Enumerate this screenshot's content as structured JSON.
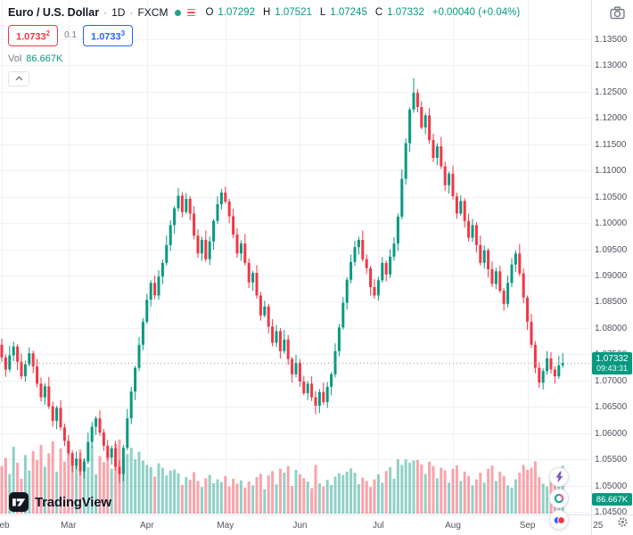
{
  "header": {
    "symbol": "Euro / U.S. Dollar",
    "separator": "·",
    "timeframe": "1D",
    "exchange": "FXCM",
    "ohlc": [
      {
        "label": "O",
        "value": "1.07292"
      },
      {
        "label": "H",
        "value": "1.07521"
      },
      {
        "label": "L",
        "value": "1.07245"
      },
      {
        "label": "C",
        "value": "1.07332"
      }
    ],
    "change": "+0.00040 (+0.04%)",
    "sell": {
      "price": "1.0733",
      "sup": "2"
    },
    "spread": "0.1",
    "buy": {
      "price": "1.0733",
      "sup": "3"
    },
    "volume_label": "Vol",
    "volume_value": "86.667K"
  },
  "footer": {
    "logo_text": "TradingView"
  },
  "icons": {
    "market_status": "dot",
    "quick_menu": "hamburger",
    "snapshot": "camera",
    "legend_collapse": "chevron-up",
    "axis_settings": "gear",
    "streams": "lightning",
    "sentiment": "donut",
    "community": "avatars"
  },
  "colors": {
    "up": "#089981",
    "down": "#f23645",
    "vol_up": "rgba(8,153,129,0.45)",
    "vol_down": "rgba(242,54,69,0.45)",
    "grid": "#eef1f6",
    "axis_text": "#50535e",
    "separator": "#e0e3eb",
    "price_line": "#9598a1",
    "badge_bg": "#089981",
    "sell": "#f23645",
    "buy": "#2962ff"
  },
  "chart_data": {
    "type": "candlestick",
    "title": "Euro / U.S. Dollar · 1D · FXCM",
    "symbol": "EUR/USD",
    "timeframe": "1D",
    "exchange": "FXCM",
    "legend_ohlc": {
      "open": 1.07292,
      "high": 1.07521,
      "low": 1.07245,
      "close": 1.07332,
      "change_abs": 0.0004,
      "change_pct": 0.04
    },
    "last_price": 1.07332,
    "last_price_label": "1.07332",
    "countdown": "09:43:31",
    "last_volume_label": "86.667K",
    "volume_pane": true,
    "grid": true,
    "y_axis": {
      "min": 1.045,
      "max": 1.135,
      "step": 0.005,
      "tick_labels": [
        "1.13500",
        "1.13000",
        "1.12500",
        "1.12000",
        "1.11500",
        "1.11000",
        "1.10500",
        "1.10000",
        "1.09500",
        "1.09000",
        "1.08500",
        "1.08000",
        "1.07500",
        "1.07000",
        "1.06500",
        "1.06000",
        "1.05500",
        "1.05000",
        "1.04500"
      ]
    },
    "x_axis": {
      "ticks": [
        {
          "label": "Feb",
          "bar": 0
        },
        {
          "label": "Mar",
          "bar": 17
        },
        {
          "label": "Apr",
          "bar": 37
        },
        {
          "label": "May",
          "bar": 57
        },
        {
          "label": "Jun",
          "bar": 76
        },
        {
          "label": "Jul",
          "bar": 96
        },
        {
          "label": "Aug",
          "bar": 115
        },
        {
          "label": "Sep",
          "bar": 134
        },
        {
          "label": "25",
          "bar": 152
        }
      ]
    },
    "candles_format": [
      "open",
      "high",
      "low",
      "close",
      "volume_K"
    ],
    "candles": [
      [
        1.0768,
        1.078,
        1.0736,
        1.0744,
        86
      ],
      [
        1.0744,
        1.075,
        1.0707,
        1.0721,
        101
      ],
      [
        1.0721,
        1.0766,
        1.0716,
        1.0748,
        72
      ],
      [
        1.0748,
        1.0774,
        1.0737,
        1.0765,
        121
      ],
      [
        1.0765,
        1.0769,
        1.072,
        1.0736,
        92
      ],
      [
        1.0736,
        1.0751,
        1.0702,
        1.0708,
        63
      ],
      [
        1.0708,
        1.0738,
        1.0698,
        1.0731,
        106
      ],
      [
        1.0731,
        1.0763,
        1.0727,
        1.0752,
        78
      ],
      [
        1.0752,
        1.0757,
        1.0714,
        1.0727,
        113
      ],
      [
        1.0727,
        1.0741,
        1.0687,
        1.0694,
        97
      ],
      [
        1.0694,
        1.0706,
        1.066,
        1.0668,
        124
      ],
      [
        1.0668,
        1.0695,
        1.0654,
        1.0689,
        85
      ],
      [
        1.0689,
        1.0707,
        1.0646,
        1.0651,
        109
      ],
      [
        1.0651,
        1.066,
        1.0612,
        1.0623,
        131
      ],
      [
        1.0623,
        1.0652,
        1.0607,
        1.0648,
        76
      ],
      [
        1.0648,
        1.0663,
        1.0605,
        1.0611,
        118
      ],
      [
        1.0611,
        1.0618,
        1.0575,
        1.0585,
        94
      ],
      [
        1.0585,
        1.0596,
        1.0558,
        1.0562,
        127
      ],
      [
        1.0562,
        1.0567,
        1.0525,
        1.0538,
        103
      ],
      [
        1.0538,
        1.0565,
        1.0531,
        1.0551,
        89
      ],
      [
        1.0551,
        1.0563,
        1.0519,
        1.0527,
        116
      ],
      [
        1.0527,
        1.0552,
        1.0513,
        1.0546,
        98
      ],
      [
        1.0546,
        1.0601,
        1.0541,
        1.0583,
        84
      ],
      [
        1.0583,
        1.0621,
        1.0572,
        1.0612,
        122
      ],
      [
        1.0612,
        1.0632,
        1.0596,
        1.0628,
        71
      ],
      [
        1.0628,
        1.0643,
        1.0595,
        1.0601,
        104
      ],
      [
        1.0601,
        1.0608,
        1.0566,
        1.0576,
        93
      ],
      [
        1.0576,
        1.0587,
        1.0549,
        1.0553,
        112
      ],
      [
        1.0553,
        1.0576,
        1.054,
        1.0571,
        81
      ],
      [
        1.0571,
        1.0585,
        1.0529,
        1.0536,
        126
      ],
      [
        1.0536,
        1.0548,
        1.0505,
        1.0522,
        134
      ],
      [
        1.0522,
        1.0578,
        1.0508,
        1.0572,
        95
      ],
      [
        1.0572,
        1.0646,
        1.0567,
        1.0628,
        108
      ],
      [
        1.0628,
        1.0688,
        1.0617,
        1.0679,
        119
      ],
      [
        1.0679,
        1.0728,
        1.0663,
        1.0724,
        98
      ],
      [
        1.0724,
        1.0783,
        1.0718,
        1.0768,
        112
      ],
      [
        1.0768,
        1.0819,
        1.0758,
        1.0812,
        96
      ],
      [
        1.0812,
        1.0865,
        1.0808,
        1.0854,
        88
      ],
      [
        1.0854,
        1.0891,
        1.0841,
        1.0886,
        84
      ],
      [
        1.0886,
        1.09,
        1.0855,
        1.0862,
        67
      ],
      [
        1.0862,
        1.091,
        1.0854,
        1.0898,
        91
      ],
      [
        1.0898,
        1.093,
        1.0884,
        1.0924,
        83
      ],
      [
        1.0924,
        1.0976,
        1.0919,
        1.0958,
        69
      ],
      [
        1.0958,
        1.1005,
        1.0947,
        1.0996,
        78
      ],
      [
        1.0996,
        1.1032,
        1.098,
        1.1028,
        80
      ],
      [
        1.1028,
        1.1067,
        1.1022,
        1.1052,
        73
      ],
      [
        1.1052,
        1.1059,
        1.1011,
        1.1021,
        52
      ],
      [
        1.1021,
        1.1057,
        1.1017,
        1.1046,
        66
      ],
      [
        1.1046,
        1.1051,
        1.1005,
        1.1018,
        61
      ],
      [
        1.1018,
        1.1032,
        1.0969,
        1.0976,
        75
      ],
      [
        1.0976,
        1.0988,
        1.0934,
        1.0942,
        59
      ],
      [
        1.0942,
        1.0974,
        1.0928,
        1.0968,
        48
      ],
      [
        1.0968,
        1.0986,
        1.0926,
        1.0931,
        64
      ],
      [
        1.0931,
        1.0974,
        1.092,
        1.0965,
        70
      ],
      [
        1.0965,
        1.1008,
        1.0949,
        1.1004,
        55
      ],
      [
        1.1004,
        1.1051,
        1.0998,
        1.1036,
        62
      ],
      [
        1.1036,
        1.1065,
        1.1026,
        1.1058,
        57
      ],
      [
        1.1058,
        1.1069,
        1.1037,
        1.1041,
        68
      ],
      [
        1.1041,
        1.1046,
        1.1,
        1.1013,
        49
      ],
      [
        1.1013,
        1.1027,
        1.0971,
        1.0978,
        63
      ],
      [
        1.0978,
        1.099,
        1.0934,
        1.0942,
        54
      ],
      [
        1.0942,
        1.0967,
        1.0928,
        1.0961,
        60
      ],
      [
        1.0961,
        1.0979,
        1.0919,
        1.0924,
        47
      ],
      [
        1.0924,
        1.0933,
        1.0876,
        1.0887,
        58
      ],
      [
        1.0887,
        1.0909,
        1.0871,
        1.0905,
        51
      ],
      [
        1.0905,
        1.092,
        1.0856,
        1.0862,
        66
      ],
      [
        1.0862,
        1.0869,
        1.0814,
        1.0824,
        72
      ],
      [
        1.0824,
        1.0852,
        1.082,
        1.0841,
        44
      ],
      [
        1.0841,
        1.0846,
        1.079,
        1.0803,
        69
      ],
      [
        1.0803,
        1.0817,
        1.0765,
        1.0772,
        77
      ],
      [
        1.0772,
        1.0806,
        1.0764,
        1.0794,
        53
      ],
      [
        1.0794,
        1.08,
        1.0742,
        1.0756,
        81
      ],
      [
        1.0756,
        1.0796,
        1.0751,
        1.0778,
        74
      ],
      [
        1.0778,
        1.0787,
        1.073,
        1.0741,
        86
      ],
      [
        1.0741,
        1.0745,
        1.0696,
        1.0712,
        50
      ],
      [
        1.0712,
        1.0749,
        1.0706,
        1.0734,
        79
      ],
      [
        1.0734,
        1.0741,
        1.0688,
        1.0698,
        71
      ],
      [
        1.0698,
        1.0709,
        1.0672,
        1.0676,
        64
      ],
      [
        1.0676,
        1.0699,
        1.0663,
        1.0694,
        58
      ],
      [
        1.0694,
        1.0708,
        1.0661,
        1.0668,
        46
      ],
      [
        1.0668,
        1.068,
        1.0636,
        1.0652,
        88
      ],
      [
        1.0652,
        1.0684,
        1.0638,
        1.0678,
        55
      ],
      [
        1.0678,
        1.0696,
        1.0654,
        1.0659,
        49
      ],
      [
        1.0659,
        1.0697,
        1.0648,
        1.0688,
        61
      ],
      [
        1.0688,
        1.0716,
        1.0672,
        1.0712,
        52
      ],
      [
        1.0712,
        1.0771,
        1.0706,
        1.0756,
        67
      ],
      [
        1.0756,
        1.0808,
        1.0746,
        1.0801,
        73
      ],
      [
        1.0801,
        1.0859,
        1.0797,
        1.0848,
        70
      ],
      [
        1.0848,
        1.0897,
        1.0835,
        1.0892,
        76
      ],
      [
        1.0892,
        1.094,
        1.0885,
        1.0926,
        82
      ],
      [
        1.0926,
        1.0966,
        1.0918,
        1.0954,
        74
      ],
      [
        1.0954,
        1.0974,
        1.094,
        1.0968,
        53
      ],
      [
        1.0968,
        1.0986,
        1.0926,
        1.0931,
        65
      ],
      [
        1.0931,
        1.094,
        1.0903,
        1.0914,
        59
      ],
      [
        1.0914,
        1.0918,
        1.0862,
        1.0878,
        48
      ],
      [
        1.0878,
        1.0893,
        1.0856,
        1.0862,
        62
      ],
      [
        1.0862,
        1.0898,
        1.0852,
        1.0891,
        71
      ],
      [
        1.0891,
        1.0935,
        1.0887,
        1.0924,
        56
      ],
      [
        1.0924,
        1.0929,
        1.0889,
        1.0902,
        77
      ],
      [
        1.0902,
        1.095,
        1.0895,
        1.0936,
        84
      ],
      [
        1.0936,
        1.0973,
        1.0928,
        1.0961,
        63
      ],
      [
        1.0961,
        1.1018,
        1.0947,
        1.1012,
        98
      ],
      [
        1.1012,
        1.1102,
        1.1007,
        1.1084,
        88
      ],
      [
        1.1084,
        1.1161,
        1.1073,
        1.1152,
        98
      ],
      [
        1.1152,
        1.122,
        1.1136,
        1.1216,
        92
      ],
      [
        1.1216,
        1.1276,
        1.121,
        1.1248,
        96
      ],
      [
        1.1248,
        1.1255,
        1.1211,
        1.1221,
        97
      ],
      [
        1.1221,
        1.1232,
        1.1178,
        1.1182,
        89
      ],
      [
        1.1182,
        1.121,
        1.1169,
        1.1205,
        72
      ],
      [
        1.1205,
        1.1219,
        1.1151,
        1.1158,
        94
      ],
      [
        1.1158,
        1.117,
        1.1116,
        1.1124,
        86
      ],
      [
        1.1124,
        1.1152,
        1.111,
        1.1146,
        64
      ],
      [
        1.1146,
        1.1164,
        1.1103,
        1.1108,
        83
      ],
      [
        1.1108,
        1.1117,
        1.1061,
        1.1072,
        78
      ],
      [
        1.1072,
        1.1098,
        1.1056,
        1.1094,
        56
      ],
      [
        1.1094,
        1.1109,
        1.1045,
        1.1051,
        81
      ],
      [
        1.1051,
        1.1058,
        1.1008,
        1.1018,
        87
      ],
      [
        1.1018,
        1.1053,
        1.1014,
        1.1042,
        59
      ],
      [
        1.1042,
        1.1047,
        1.0991,
        1.1004,
        76
      ],
      [
        1.1004,
        1.1018,
        1.0965,
        1.0972,
        68
      ],
      [
        1.0972,
        1.1008,
        1.0964,
        1.0996,
        51
      ],
      [
        1.0996,
        1.1002,
        1.0944,
        1.0958,
        62
      ],
      [
        1.0958,
        1.0976,
        1.0919,
        1.0924,
        74
      ],
      [
        1.0924,
        1.0957,
        1.0913,
        1.0948,
        56
      ],
      [
        1.0948,
        1.0952,
        1.0896,
        1.0912,
        81
      ],
      [
        1.0912,
        1.0927,
        1.0878,
        1.0884,
        87
      ],
      [
        1.0884,
        1.0915,
        1.0874,
        1.0908,
        59
      ],
      [
        1.0908,
        1.0919,
        1.0867,
        1.0871,
        76
      ],
      [
        1.0871,
        1.0876,
        1.0833,
        1.0846,
        68
      ],
      [
        1.0846,
        1.09,
        1.0839,
        1.0886,
        51
      ],
      [
        1.0886,
        1.0933,
        1.0878,
        1.0921,
        47
      ],
      [
        1.0921,
        1.0948,
        1.0907,
        1.0942,
        62
      ],
      [
        1.0942,
        1.096,
        1.0899,
        1.0904,
        74
      ],
      [
        1.0904,
        1.0913,
        1.0847,
        1.0858,
        88
      ],
      [
        1.0858,
        1.0862,
        1.0796,
        1.0812,
        79
      ],
      [
        1.0812,
        1.0827,
        1.0762,
        1.0768,
        83
      ],
      [
        1.0768,
        1.0775,
        1.0714,
        1.0724,
        95
      ],
      [
        1.0724,
        1.0735,
        1.0686,
        1.0696,
        66
      ],
      [
        1.0696,
        1.0723,
        1.0683,
        1.0718,
        54
      ],
      [
        1.0718,
        1.0756,
        1.0711,
        1.0742,
        49
      ],
      [
        1.0742,
        1.0754,
        1.0713,
        1.0721,
        58
      ],
      [
        1.0721,
        1.0727,
        1.0694,
        1.0708,
        63
      ],
      [
        1.0708,
        1.0747,
        1.0703,
        1.0729,
        52
      ],
      [
        1.07292,
        1.07521,
        1.07245,
        1.07332,
        86.667
      ]
    ]
  }
}
